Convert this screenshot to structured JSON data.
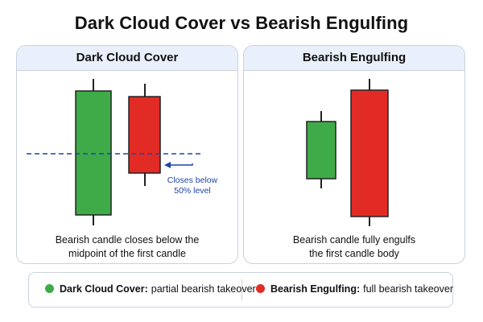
{
  "title": "Dark Cloud Cover vs Bearish Engulfing",
  "panels": [
    {
      "heading": "Dark Cloud Cover",
      "annotation_lines": [
        "Closes below",
        "50% level"
      ],
      "caption_lines": [
        "Bearish candle closes below the",
        "midpoint of the first candle"
      ]
    },
    {
      "heading": "Bearish Engulfing",
      "caption_lines": [
        "Bearish candle fully engulfs",
        "the first candle body"
      ]
    }
  ],
  "legend": [
    {
      "name": "Dark Cloud Cover:",
      "text": "partial bearish takeover",
      "icon": "green-dot-icon",
      "color": "#3fab48"
    },
    {
      "name": "Bearish Engulfing:",
      "text": "full bearish takeover",
      "icon": "red-dot-icon",
      "color": "#e22b25"
    }
  ],
  "colors": {
    "bullish": "#3fab48",
    "bearish": "#e22b25",
    "midpoint_line": "#1f44a8",
    "panel_header_bg": "#e9f0fb",
    "border": "#c9d2de"
  }
}
